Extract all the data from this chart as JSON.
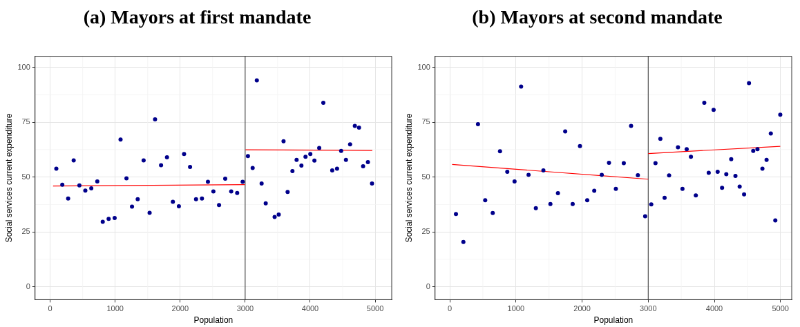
{
  "chart_data": [
    {
      "type": "scatter",
      "title": "(a) Mayors at first mandate",
      "xlabel": "Population",
      "ylabel": "Social services current expenditure",
      "xlim": [
        -232,
        5254
      ],
      "ylim": [
        -5.9,
        105
      ],
      "xticks": [
        0,
        1000,
        2000,
        3000,
        4000,
        5000
      ],
      "yticks": [
        0,
        25,
        50,
        75,
        100
      ],
      "grid": true,
      "ref_lines": [
        {
          "axis": "x",
          "value": 3000,
          "color": "#333333"
        }
      ],
      "series": [
        {
          "marker": "circle",
          "color": "#00008b",
          "x": [
            95,
            187,
            277,
            362,
            450,
            541,
            633,
            725,
            809,
            900,
            992,
            1083,
            1174,
            1259,
            1347,
            1438,
            1530,
            1614,
            1706,
            1797,
            1888,
            1980,
            2060,
            2152,
            2244,
            2335,
            2427,
            2511,
            2598,
            2693,
            2785,
            2877,
            2961,
            3042,
            3115,
            3179,
            3253,
            3316,
            3453,
            3516,
            3590,
            3653,
            3727,
            3791,
            3865,
            3928,
            4002,
            4065,
            4139,
            4202,
            4339,
            4413,
            4476,
            4550,
            4614,
            4687,
            4751,
            4814,
            4888,
            4951
          ],
          "values": [
            53.8,
            46.5,
            40.2,
            57.6,
            46.2,
            43.8,
            44.8,
            48.0,
            29.6,
            30.9,
            31.3,
            67.1,
            49.4,
            36.5,
            39.9,
            57.6,
            33.7,
            76.3,
            55.4,
            59.0,
            38.7,
            36.7,
            60.5,
            54.6,
            39.9,
            40.2,
            47.8,
            43.4,
            37.2,
            49.2,
            43.4,
            42.7,
            47.8,
            59.5,
            54.1,
            94.0,
            47.0,
            38.0,
            31.8,
            32.9,
            66.3,
            43.2,
            52.7,
            57.8,
            55.2,
            59.2,
            60.5,
            57.5,
            63.2,
            83.8,
            53.0,
            53.8,
            61.9,
            57.8,
            64.9,
            73.3,
            72.5,
            54.9,
            56.8,
            47.0
          ]
        },
        {
          "type": "line",
          "color": "#ff0000",
          "x": [
            45,
            2995
          ],
          "values": [
            45.9,
            46.5
          ]
        },
        {
          "type": "line",
          "color": "#ff0000",
          "x": [
            3005,
            4955
          ],
          "values": [
            62.4,
            62.1
          ]
        }
      ]
    },
    {
      "type": "scatter",
      "title": "(b) Mayors at second mandate",
      "xlabel": "Population",
      "ylabel": "Social services current expenditure",
      "xlim": [
        -223,
        5170
      ],
      "ylim": [
        -5.9,
        105
      ],
      "xticks": [
        0,
        1000,
        2000,
        3000,
        4000,
        5000
      ],
      "yticks": [
        0,
        25,
        50,
        75,
        100
      ],
      "grid": true,
      "ref_lines": [
        {
          "axis": "x",
          "value": 3000,
          "color": "#333333"
        }
      ],
      "series": [
        {
          "marker": "circle",
          "color": "#00008b",
          "x": [
            93,
            205,
            426,
            535,
            649,
            759,
            869,
            979,
            1078,
            1191,
            1301,
            1415,
            1521,
            1635,
            1745,
            1858,
            1968,
            2078,
            2184,
            2298,
            2407,
            2511,
            2631,
            2741,
            2844,
            2954,
            3046,
            3110,
            3184,
            3248,
            3316,
            3450,
            3518,
            3582,
            3646,
            3720,
            3848,
            3915,
            3989,
            4050,
            4117,
            4181,
            4255,
            4319,
            4383,
            4450,
            4524,
            4588,
            4652,
            4727,
            4790,
            4854,
            4922,
            4997
          ],
          "values": [
            33.1,
            20.4,
            74.1,
            39.4,
            33.6,
            61.7,
            52.4,
            48.0,
            91.2,
            51.0,
            35.8,
            53.0,
            37.7,
            42.6,
            70.8,
            37.7,
            64.1,
            39.4,
            43.7,
            51.0,
            56.5,
            44.6,
            56.3,
            73.3,
            50.8,
            32.1,
            37.5,
            56.3,
            67.4,
            40.5,
            50.7,
            63.5,
            44.6,
            62.7,
            59.2,
            41.6,
            83.8,
            51.9,
            80.6,
            52.4,
            45.1,
            51.3,
            58.1,
            50.5,
            45.6,
            42.1,
            92.8,
            61.9,
            62.7,
            53.8,
            57.8,
            69.8,
            30.2,
            78.4
          ]
        },
        {
          "type": "line",
          "color": "#ff0000",
          "x": [
            35,
            3000
          ],
          "values": [
            55.7,
            49.0
          ]
        },
        {
          "type": "line",
          "color": "#ff0000",
          "x": [
            3000,
            4997
          ],
          "values": [
            60.7,
            64.0
          ]
        }
      ]
    }
  ]
}
